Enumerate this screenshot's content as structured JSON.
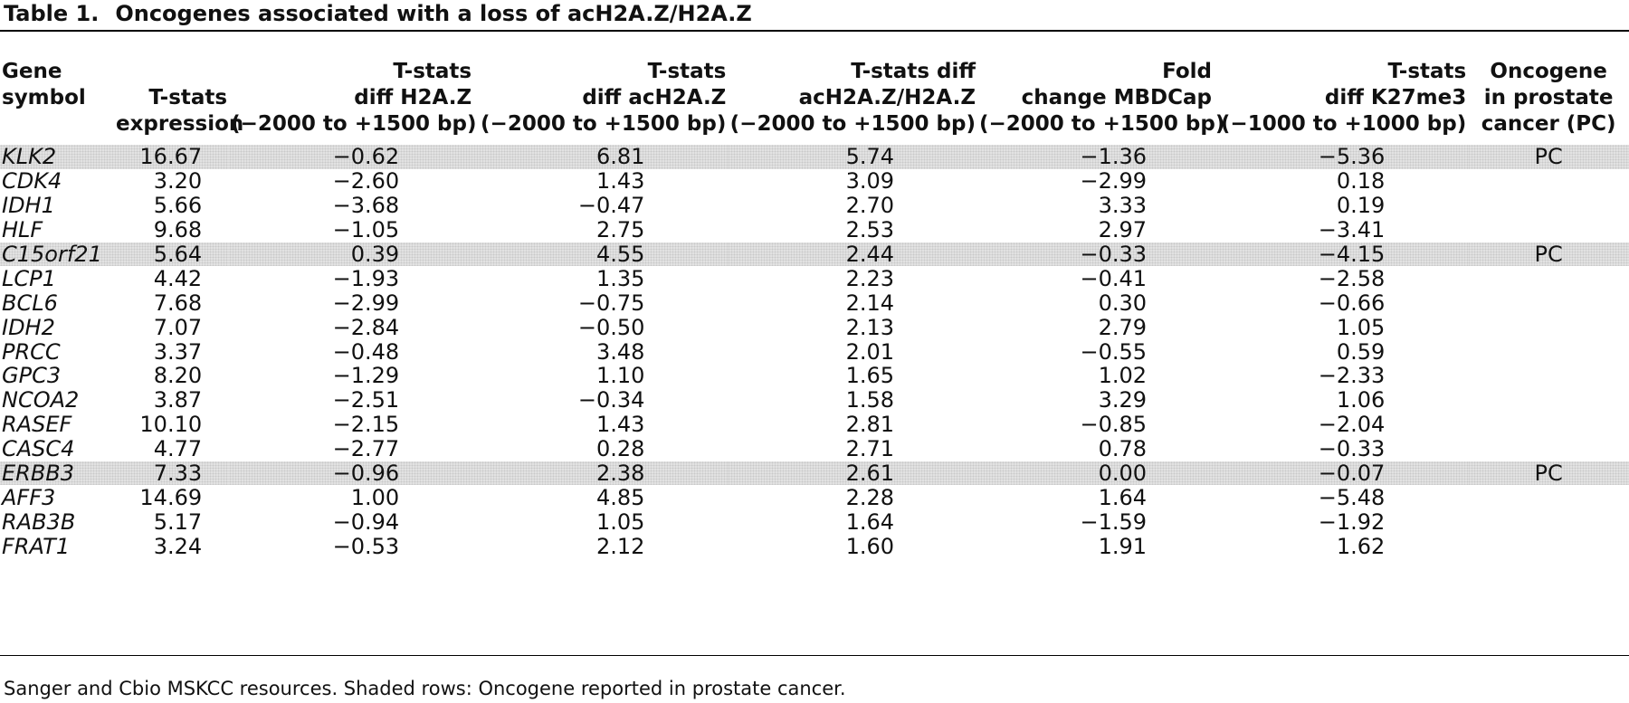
{
  "table": {
    "label": "Table 1.",
    "title": "Oncogenes associated with a loss of acH2A.Z/H2A.Z",
    "headers": [
      {
        "key": "gene",
        "line1": "Gene",
        "line2": "symbol",
        "line3": ""
      },
      {
        "key": "expr",
        "line1": "",
        "line2": "T-stats",
        "line3": "expression"
      },
      {
        "key": "h2az",
        "line1": "T-stats",
        "line2": "diff H2A.Z",
        "line3": "(−2000 to +1500 bp)"
      },
      {
        "key": "ac",
        "line1": "T-stats",
        "line2": "diff acH2A.Z",
        "line3": "(−2000 to +1500 bp)"
      },
      {
        "key": "diff",
        "line1": "T-stats diff",
        "line2": "acH2A.Z/H2A.Z",
        "line3": "(−2000 to +1500 bp)"
      },
      {
        "key": "mbd",
        "line1": "Fold",
        "line2": "change MBDCap",
        "line3": "(−2000 to +1500 bp)"
      },
      {
        "key": "k27",
        "line1": "T-stats",
        "line2": "diff K27me3",
        "line3": "(−1000 to +1000 bp)"
      },
      {
        "key": "pc",
        "line1": "Oncogene",
        "line2": "in prostate",
        "line3": "cancer (PC)"
      }
    ],
    "rows": [
      {
        "gene": "KLK2",
        "expr": "16.67",
        "h2az": "−0.62",
        "ac": "6.81",
        "diff": "5.74",
        "mbd": "−1.36",
        "k27": "−5.36",
        "pc": "PC",
        "shaded": true
      },
      {
        "gene": "CDK4",
        "expr": "3.20",
        "h2az": "−2.60",
        "ac": "1.43",
        "diff": "3.09",
        "mbd": "−2.99",
        "k27": "0.18",
        "pc": "",
        "shaded": false
      },
      {
        "gene": "IDH1",
        "expr": "5.66",
        "h2az": "−3.68",
        "ac": "−0.47",
        "diff": "2.70",
        "mbd": "3.33",
        "k27": "0.19",
        "pc": "",
        "shaded": false
      },
      {
        "gene": "HLF",
        "expr": "9.68",
        "h2az": "−1.05",
        "ac": "2.75",
        "diff": "2.53",
        "mbd": "2.97",
        "k27": "−3.41",
        "pc": "",
        "shaded": false
      },
      {
        "gene": "C15orf21",
        "expr": "5.64",
        "h2az": "0.39",
        "ac": "4.55",
        "diff": "2.44",
        "mbd": "−0.33",
        "k27": "−4.15",
        "pc": "PC",
        "shaded": true
      },
      {
        "gene": "LCP1",
        "expr": "4.42",
        "h2az": "−1.93",
        "ac": "1.35",
        "diff": "2.23",
        "mbd": "−0.41",
        "k27": "−2.58",
        "pc": "",
        "shaded": false
      },
      {
        "gene": "BCL6",
        "expr": "7.68",
        "h2az": "−2.99",
        "ac": "−0.75",
        "diff": "2.14",
        "mbd": "0.30",
        "k27": "−0.66",
        "pc": "",
        "shaded": false
      },
      {
        "gene": "IDH2",
        "expr": "7.07",
        "h2az": "−2.84",
        "ac": "−0.50",
        "diff": "2.13",
        "mbd": "2.79",
        "k27": "1.05",
        "pc": "",
        "shaded": false
      },
      {
        "gene": "PRCC",
        "expr": "3.37",
        "h2az": "−0.48",
        "ac": "3.48",
        "diff": "2.01",
        "mbd": "−0.55",
        "k27": "0.59",
        "pc": "",
        "shaded": false
      },
      {
        "gene": "GPC3",
        "expr": "8.20",
        "h2az": "−1.29",
        "ac": "1.10",
        "diff": "1.65",
        "mbd": "1.02",
        "k27": "−2.33",
        "pc": "",
        "shaded": false
      },
      {
        "gene": "NCOA2",
        "expr": "3.87",
        "h2az": "−2.51",
        "ac": "−0.34",
        "diff": "1.58",
        "mbd": "3.29",
        "k27": "1.06",
        "pc": "",
        "shaded": false
      },
      {
        "gene": "RASEF",
        "expr": "10.10",
        "h2az": "−2.15",
        "ac": "1.43",
        "diff": "2.81",
        "mbd": "−0.85",
        "k27": "−2.04",
        "pc": "",
        "shaded": false
      },
      {
        "gene": "CASC4",
        "expr": "4.77",
        "h2az": "−2.77",
        "ac": "0.28",
        "diff": "2.71",
        "mbd": "0.78",
        "k27": "−0.33",
        "pc": "",
        "shaded": false
      },
      {
        "gene": "ERBB3",
        "expr": "7.33",
        "h2az": "−0.96",
        "ac": "2.38",
        "diff": "2.61",
        "mbd": "0.00",
        "k27": "−0.07",
        "pc": "PC",
        "shaded": true
      },
      {
        "gene": "AFF3",
        "expr": "14.69",
        "h2az": "1.00",
        "ac": "4.85",
        "diff": "2.28",
        "mbd": "1.64",
        "k27": "−5.48",
        "pc": "",
        "shaded": false
      },
      {
        "gene": "RAB3B",
        "expr": "5.17",
        "h2az": "−0.94",
        "ac": "1.05",
        "diff": "1.64",
        "mbd": "−1.59",
        "k27": "−1.92",
        "pc": "",
        "shaded": false
      },
      {
        "gene": "FRAT1",
        "expr": "3.24",
        "h2az": "−0.53",
        "ac": "2.12",
        "diff": "1.60",
        "mbd": "1.91",
        "k27": "1.62",
        "pc": "",
        "shaded": false
      }
    ],
    "footnote": "Sanger and Cbio MSKCC resources. Shaded rows: Oncogene reported in prostate cancer."
  }
}
